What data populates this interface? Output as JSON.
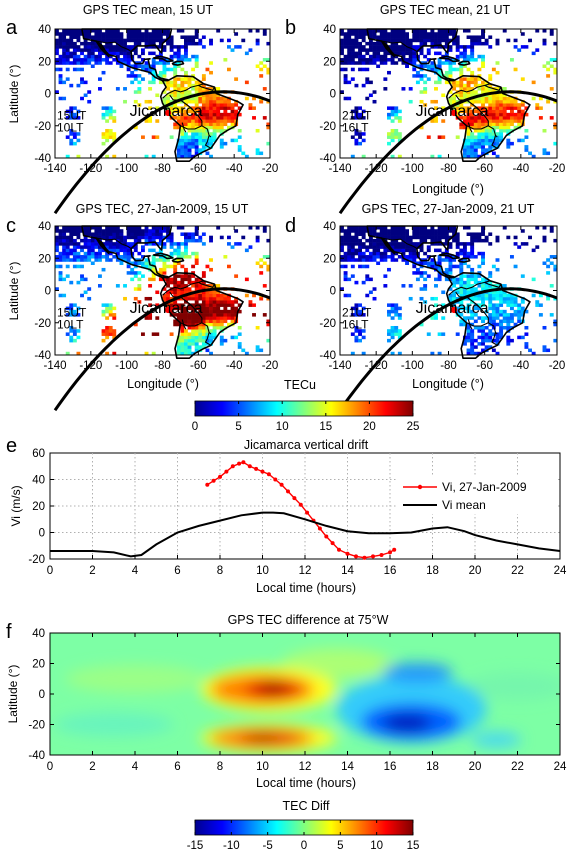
{
  "chart_data": [
    {
      "type": "heatmap",
      "panel_letter": "a",
      "title": "GPS TEC mean, 15 UT",
      "xlabel": "",
      "ylabel": "Latitude (°)",
      "xlim": [
        -140,
        -20
      ],
      "ylim": [
        -40,
        40
      ],
      "x_ticks": [
        -140,
        -120,
        -100,
        -80,
        -60,
        -40,
        -20
      ],
      "y_ticks": [
        -40,
        -20,
        0,
        20,
        40
      ],
      "site_label": "Jicamarca",
      "site": [
        -76.9,
        -12
      ],
      "time_label": [
        "15UT",
        "10LT"
      ]
    },
    {
      "type": "heatmap",
      "panel_letter": "b",
      "title": "GPS TEC mean, 21 UT",
      "xlabel": "Longitude (°)",
      "ylabel": "",
      "xlim": [
        -140,
        -20
      ],
      "ylim": [
        -40,
        40
      ],
      "x_ticks": [
        -140,
        -120,
        -100,
        -80,
        -60,
        -40,
        -20
      ],
      "y_ticks": [
        -40,
        -20,
        0,
        20,
        40
      ],
      "site_label": "Jicamarca",
      "site": [
        -76.9,
        -12
      ],
      "time_label": [
        "21UT",
        "16LT"
      ]
    },
    {
      "type": "heatmap",
      "panel_letter": "c",
      "title": "GPS TEC, 27-Jan-2009, 15 UT",
      "xlabel": "Longitude (°)",
      "ylabel": "Latitude (°)",
      "xlim": [
        -140,
        -20
      ],
      "ylim": [
        -40,
        40
      ],
      "x_ticks": [
        -140,
        -120,
        -100,
        -80,
        -60,
        -40,
        -20
      ],
      "y_ticks": [
        -40,
        -20,
        0,
        20,
        40
      ],
      "site_label": "Jicamarca",
      "site": [
        -76.9,
        -12
      ],
      "time_label": [
        "15UT",
        "10LT"
      ]
    },
    {
      "type": "heatmap",
      "panel_letter": "d",
      "title": "GPS TEC, 27-Jan-2009, 21 UT",
      "xlabel": "Longitude (°)",
      "ylabel": "",
      "xlim": [
        -140,
        -20
      ],
      "ylim": [
        -40,
        40
      ],
      "x_ticks": [
        -140,
        -120,
        -100,
        -80,
        -60,
        -40,
        -20
      ],
      "y_ticks": [
        -40,
        -20,
        0,
        20,
        40
      ],
      "site_label": "Jicamarca",
      "site": [
        -76.9,
        -12
      ],
      "time_label": [
        "21UT",
        "16LT"
      ]
    },
    {
      "type": "colorbar",
      "title": "TECu",
      "range": [
        0,
        25
      ],
      "ticks": [
        0,
        5,
        10,
        15,
        20,
        25
      ]
    },
    {
      "type": "line",
      "panel_letter": "e",
      "title": "Jicamarca vertical drift",
      "xlabel": "Local time (hours)",
      "ylabel": "Vi (m/s)",
      "xlim": [
        0,
        24
      ],
      "ylim": [
        -20,
        60
      ],
      "x_ticks": [
        0,
        2,
        4,
        6,
        8,
        10,
        12,
        14,
        16,
        18,
        20,
        22,
        24
      ],
      "y_ticks": [
        -20,
        0,
        20,
        40,
        60
      ],
      "grid": true,
      "legend": "top-right",
      "series": [
        {
          "name": "Vi, 27-Jan-2009",
          "color": "#ff0000",
          "marker": "dot",
          "x": [
            7.4,
            7.7,
            8.0,
            8.3,
            8.6,
            8.9,
            9.1,
            9.4,
            9.7,
            10.0,
            10.3,
            10.6,
            10.9,
            11.2,
            11.5,
            11.8,
            12.1,
            12.4,
            12.7,
            13.0,
            13.3,
            13.6,
            14.0,
            14.4,
            14.8,
            15.2,
            15.6,
            16.0,
            16.2
          ],
          "y": [
            36,
            39,
            42,
            46,
            50,
            52,
            53,
            50,
            48,
            46,
            44,
            40,
            36,
            31,
            26,
            21,
            15,
            9,
            3,
            -3,
            -8,
            -13,
            -16,
            -18,
            -19,
            -18,
            -17,
            -15,
            -13
          ]
        },
        {
          "name": "Vi mean",
          "color": "#000000",
          "marker": "none",
          "x": [
            0,
            1,
            2,
            3,
            3.8,
            4.3,
            5,
            6,
            7,
            8,
            9,
            10,
            10.5,
            11,
            12,
            13,
            14,
            15,
            16,
            17,
            18,
            18.7,
            19.5,
            20,
            21,
            22,
            23,
            24
          ],
          "y": [
            -14,
            -14,
            -14,
            -15,
            -18,
            -17,
            -9,
            0,
            5,
            9,
            13,
            15,
            15,
            14.5,
            10,
            5,
            1,
            -0.5,
            -0.5,
            0,
            3,
            4,
            1,
            -2,
            -6,
            -9,
            -12,
            -14
          ]
        }
      ]
    },
    {
      "type": "heatmap",
      "panel_letter": "f",
      "title": "GPS TEC difference at 75°W",
      "xlabel": "Local time (hours)",
      "ylabel": "Latitude (°)",
      "xlim": [
        0,
        24
      ],
      "ylim": [
        -40,
        40
      ],
      "x_ticks": [
        0,
        2,
        4,
        6,
        8,
        10,
        12,
        14,
        16,
        18,
        20,
        22,
        24
      ],
      "y_ticks": [
        -40,
        -20,
        0,
        20,
        40
      ],
      "features": [
        {
          "lt": 10.5,
          "lat": 3,
          "value": 14
        },
        {
          "lt": 10.5,
          "lat": -30,
          "value": 13
        },
        {
          "lt": 16.8,
          "lat": -18,
          "value": -9
        },
        {
          "lt": 17.0,
          "lat": 14,
          "value": -6
        }
      ]
    },
    {
      "type": "colorbar",
      "title": "TEC Diff",
      "range": [
        -15,
        15
      ],
      "ticks": [
        -15,
        -10,
        -5,
        0,
        5,
        10,
        15
      ]
    }
  ]
}
